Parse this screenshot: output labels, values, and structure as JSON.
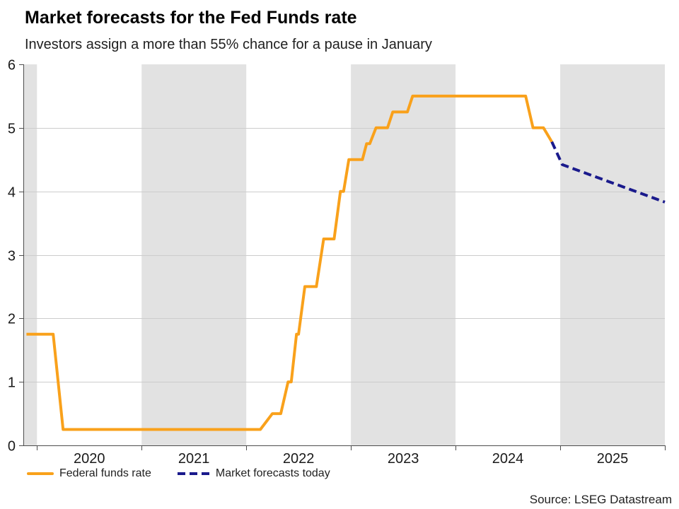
{
  "chart_data": {
    "type": "line",
    "title": "Market forecasts for the Fed Funds rate",
    "subtitle": "Investors assign a more than 55% chance for a pause in January",
    "source": "Source: LSEG Datastream",
    "x_axis": {
      "range": [
        2019.87,
        2026.0
      ],
      "ticks": [
        2020,
        2021,
        2022,
        2023,
        2024,
        2025,
        2026
      ],
      "year_labels": [
        {
          "pos": 2020.5,
          "text": "2020"
        },
        {
          "pos": 2021.5,
          "text": "2021"
        },
        {
          "pos": 2022.5,
          "text": "2022"
        },
        {
          "pos": 2023.5,
          "text": "2023"
        },
        {
          "pos": 2024.5,
          "text": "2024"
        },
        {
          "pos": 2025.5,
          "text": "2025"
        }
      ]
    },
    "y_axis": {
      "range": [
        0,
        6
      ],
      "ticks": [
        0,
        1,
        2,
        3,
        4,
        5,
        6
      ]
    },
    "shaded_bands": [
      [
        2019.87,
        2020.0
      ],
      [
        2021.0,
        2022.0
      ],
      [
        2023.0,
        2024.0
      ],
      [
        2025.0,
        2026.0
      ]
    ],
    "grid_on": true,
    "band_color": "#e2e2e2",
    "grid_color": "#cccccc",
    "axis_color": "#4d4d4d",
    "tick_label_color": "#1a1a1a",
    "series": [
      {
        "name": "Federal funds rate",
        "color": "#F9A11B",
        "dash": null,
        "points": [
          [
            2019.9,
            1.75
          ],
          [
            2020.155,
            1.75
          ],
          [
            2020.25,
            0.25
          ],
          [
            2022.135,
            0.25
          ],
          [
            2022.25,
            0.5
          ],
          [
            2022.33,
            0.5
          ],
          [
            2022.4,
            1.0
          ],
          [
            2022.43,
            1.0
          ],
          [
            2022.48,
            1.75
          ],
          [
            2022.5,
            1.75
          ],
          [
            2022.56,
            2.5
          ],
          [
            2022.67,
            2.5
          ],
          [
            2022.74,
            3.25
          ],
          [
            2022.84,
            3.25
          ],
          [
            2022.9,
            4.0
          ],
          [
            2022.93,
            4.0
          ],
          [
            2022.98,
            4.5
          ],
          [
            2023.11,
            4.5
          ],
          [
            2023.15,
            4.75
          ],
          [
            2023.18,
            4.75
          ],
          [
            2023.24,
            5.0
          ],
          [
            2023.35,
            5.0
          ],
          [
            2023.4,
            5.25
          ],
          [
            2023.54,
            5.25
          ],
          [
            2023.59,
            5.5
          ],
          [
            2024.67,
            5.5
          ],
          [
            2024.74,
            5.0
          ],
          [
            2024.84,
            5.0
          ],
          [
            2024.92,
            4.78
          ]
        ]
      },
      {
        "name": "Market forecasts today",
        "color": "#1A1A8C",
        "dash": "11 6",
        "points": [
          [
            2024.92,
            4.78
          ],
          [
            2025.02,
            4.42
          ],
          [
            2026.0,
            3.83
          ]
        ]
      }
    ]
  },
  "legend": {
    "items": [
      {
        "label": "Federal funds rate",
        "color": "#F9A11B",
        "dash": null
      },
      {
        "label": "Market forecasts today",
        "color": "#1A1A8C",
        "dash": "11 6"
      }
    ]
  },
  "footer": {
    "source": "Source: LSEG Datastream"
  }
}
